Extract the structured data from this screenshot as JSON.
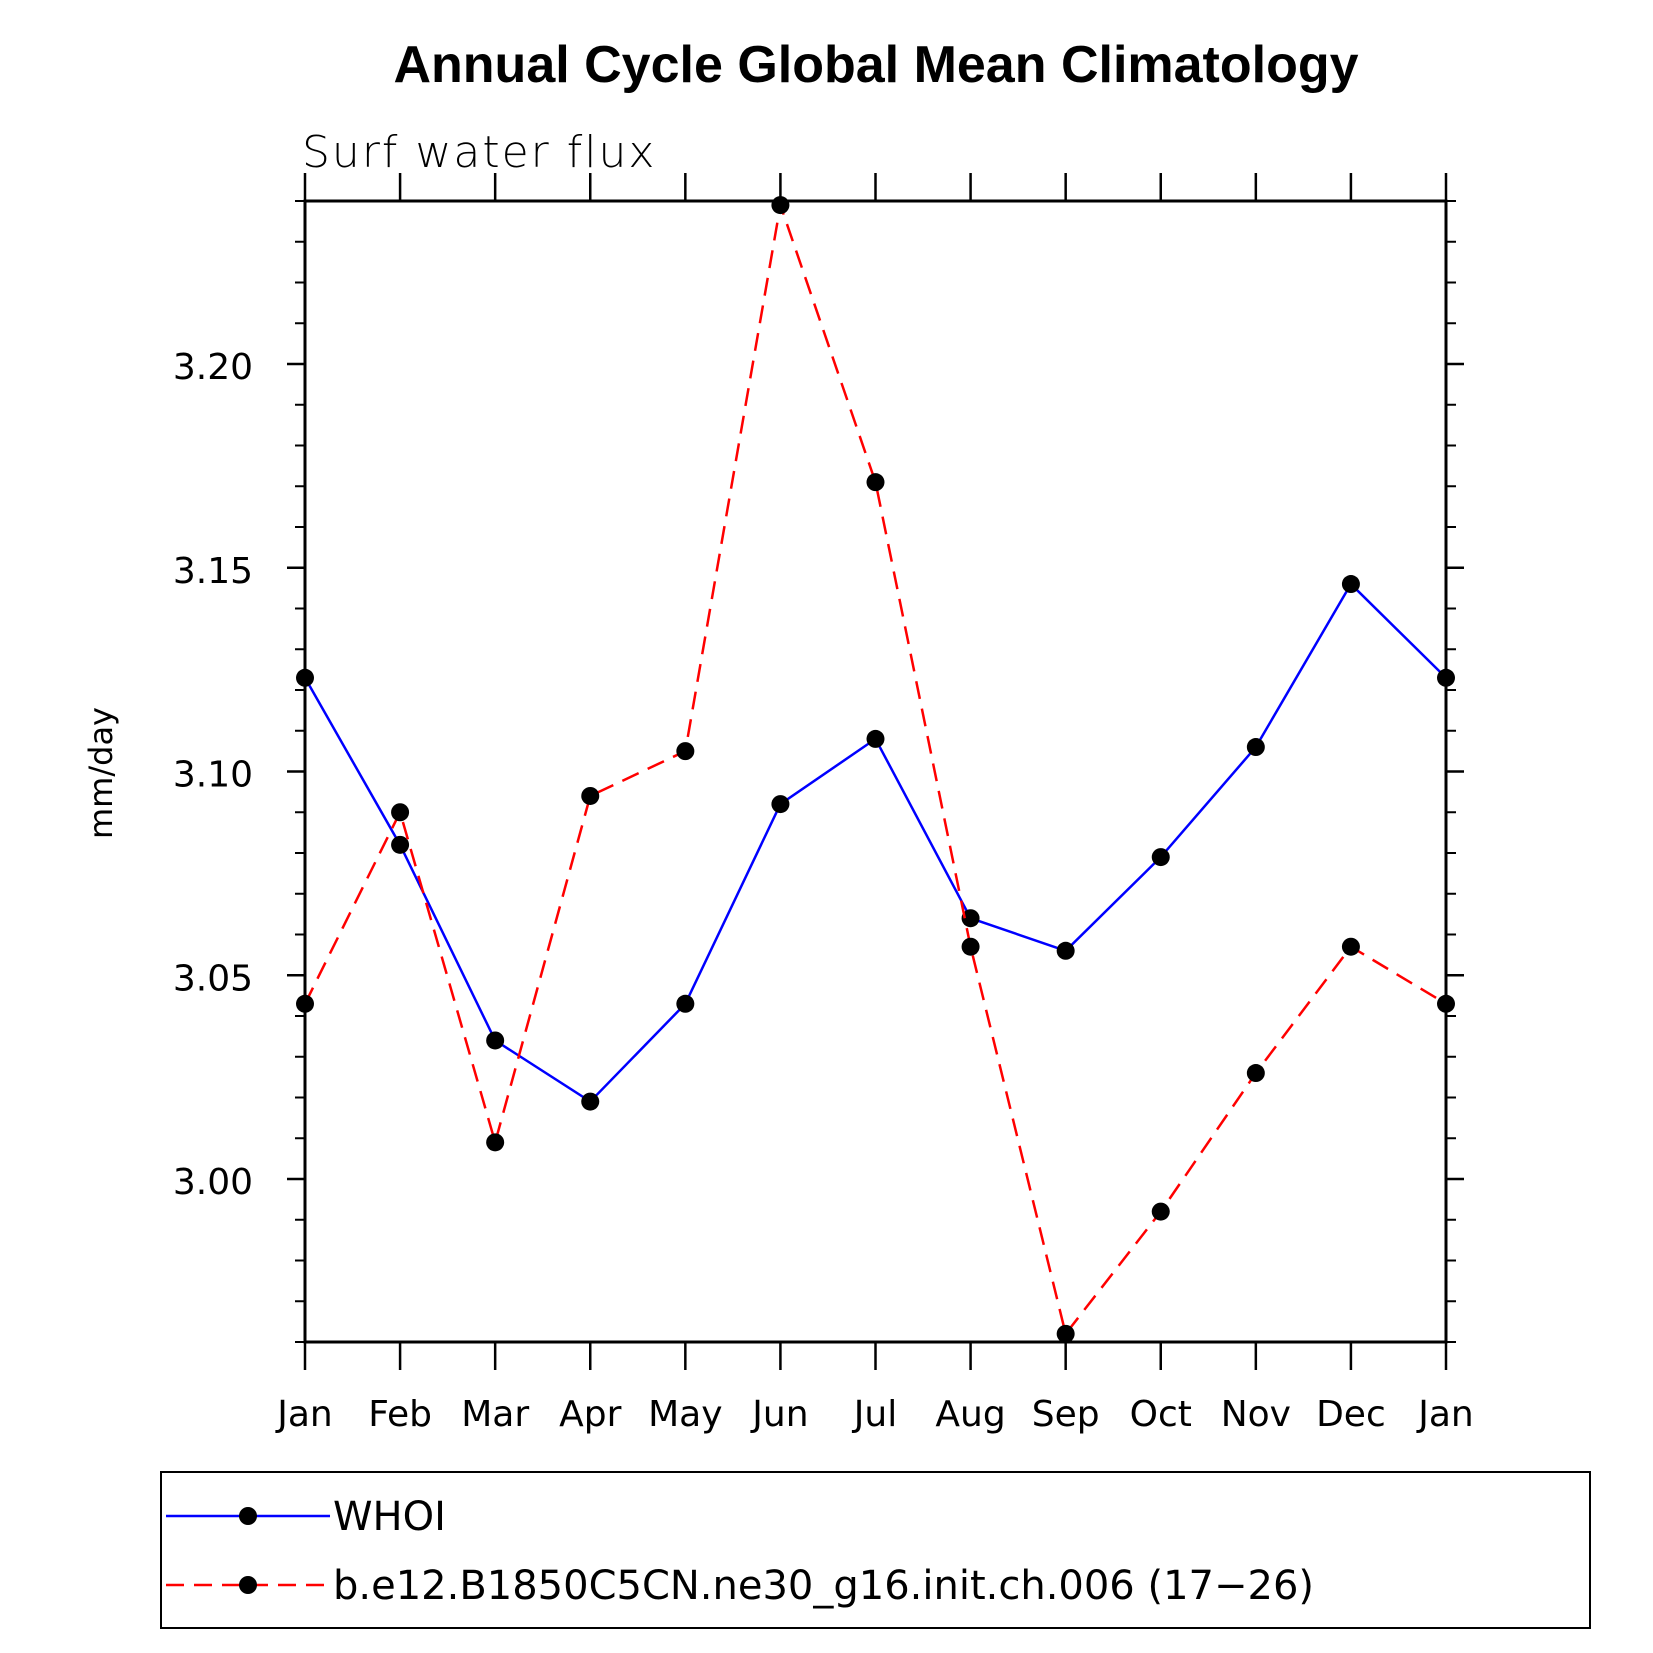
{
  "chart_data": {
    "type": "line",
    "title": "Annual Cycle Global Mean Climatology",
    "subtitle": "Surf water flux",
    "ylabel": "mm/day",
    "xlabel": "",
    "categories": [
      "Jan",
      "Feb",
      "Mar",
      "Apr",
      "May",
      "Jun",
      "Jul",
      "Aug",
      "Sep",
      "Oct",
      "Nov",
      "Dec",
      "Jan"
    ],
    "ylim": [
      2.96,
      3.24
    ],
    "yticks": [
      "3.00",
      "3.05",
      "3.10",
      "3.15",
      "3.20"
    ],
    "grid": false,
    "legend_position": "bottom",
    "series": [
      {
        "name": "WHOI",
        "color": "#0000ff",
        "line_style": "solid",
        "marker": "filled-circle",
        "values": [
          3.123,
          3.082,
          3.034,
          3.019,
          3.043,
          3.092,
          3.108,
          3.064,
          3.056,
          3.079,
          3.106,
          3.146,
          3.123
        ]
      },
      {
        "name": "b.e12.B1850C5CN.ne30_g16.init.ch.006 (17−26)",
        "color": "#ff0000",
        "line_style": "dashed",
        "marker": "filled-circle",
        "values": [
          3.043,
          3.09,
          3.009,
          3.094,
          3.105,
          3.239,
          3.171,
          3.057,
          2.962,
          2.992,
          3.026,
          3.057,
          3.043
        ]
      }
    ]
  }
}
